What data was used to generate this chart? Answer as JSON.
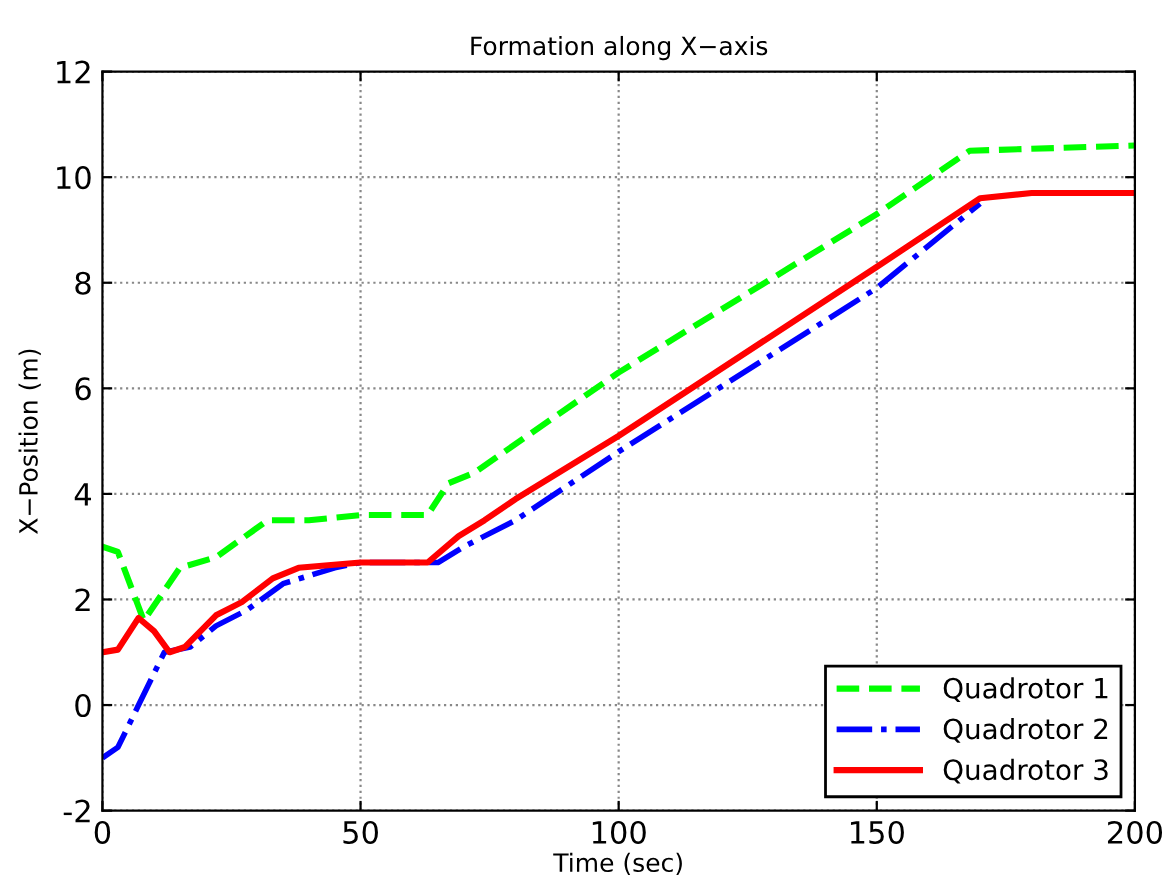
{
  "chart_data": {
    "type": "line",
    "title": "Formation along X−axis",
    "xlabel": "Time (sec)",
    "ylabel": "X−Position (m)",
    "xlim": [
      0,
      200
    ],
    "ylim": [
      -2,
      12
    ],
    "xticks": [
      0,
      50,
      100,
      150,
      200
    ],
    "yticks": [
      -2,
      0,
      2,
      4,
      6,
      8,
      10,
      12
    ],
    "grid": true,
    "legend": "bottom right",
    "series": [
      {
        "name": "Quadrotor 1",
        "color": "#00ff00",
        "line_style": "dashed",
        "x": [
          0,
          3,
          8,
          15,
          22,
          32,
          40,
          50,
          63,
          67,
          72,
          100,
          150,
          168,
          200
        ],
        "values": [
          3.0,
          2.9,
          1.6,
          2.6,
          2.8,
          3.5,
          3.5,
          3.6,
          3.6,
          4.2,
          4.4,
          6.3,
          9.3,
          10.5,
          10.6
        ]
      },
      {
        "name": "Quadrotor 2",
        "color": "#0000ff",
        "line_style": "dashdot",
        "x": [
          0,
          3,
          7,
          12,
          17,
          22,
          28,
          35,
          45,
          50,
          65,
          70,
          80,
          100,
          150,
          170
        ],
        "values": [
          -1.0,
          -0.8,
          0.0,
          1.0,
          1.1,
          1.5,
          1.8,
          2.3,
          2.6,
          2.7,
          2.7,
          3.0,
          3.5,
          4.8,
          7.9,
          9.5
        ]
      },
      {
        "name": "Quadrotor 3",
        "color": "#ff0000",
        "line_style": "solid",
        "x": [
          0,
          3,
          7,
          10,
          13,
          16,
          22,
          27,
          33,
          38,
          50,
          63,
          69,
          74,
          80,
          100,
          150,
          170,
          180,
          200
        ],
        "values": [
          1.0,
          1.05,
          1.65,
          1.4,
          1.0,
          1.1,
          1.7,
          1.95,
          2.4,
          2.6,
          2.7,
          2.7,
          3.2,
          3.5,
          3.9,
          5.1,
          8.3,
          9.6,
          9.7,
          9.7
        ]
      }
    ]
  }
}
